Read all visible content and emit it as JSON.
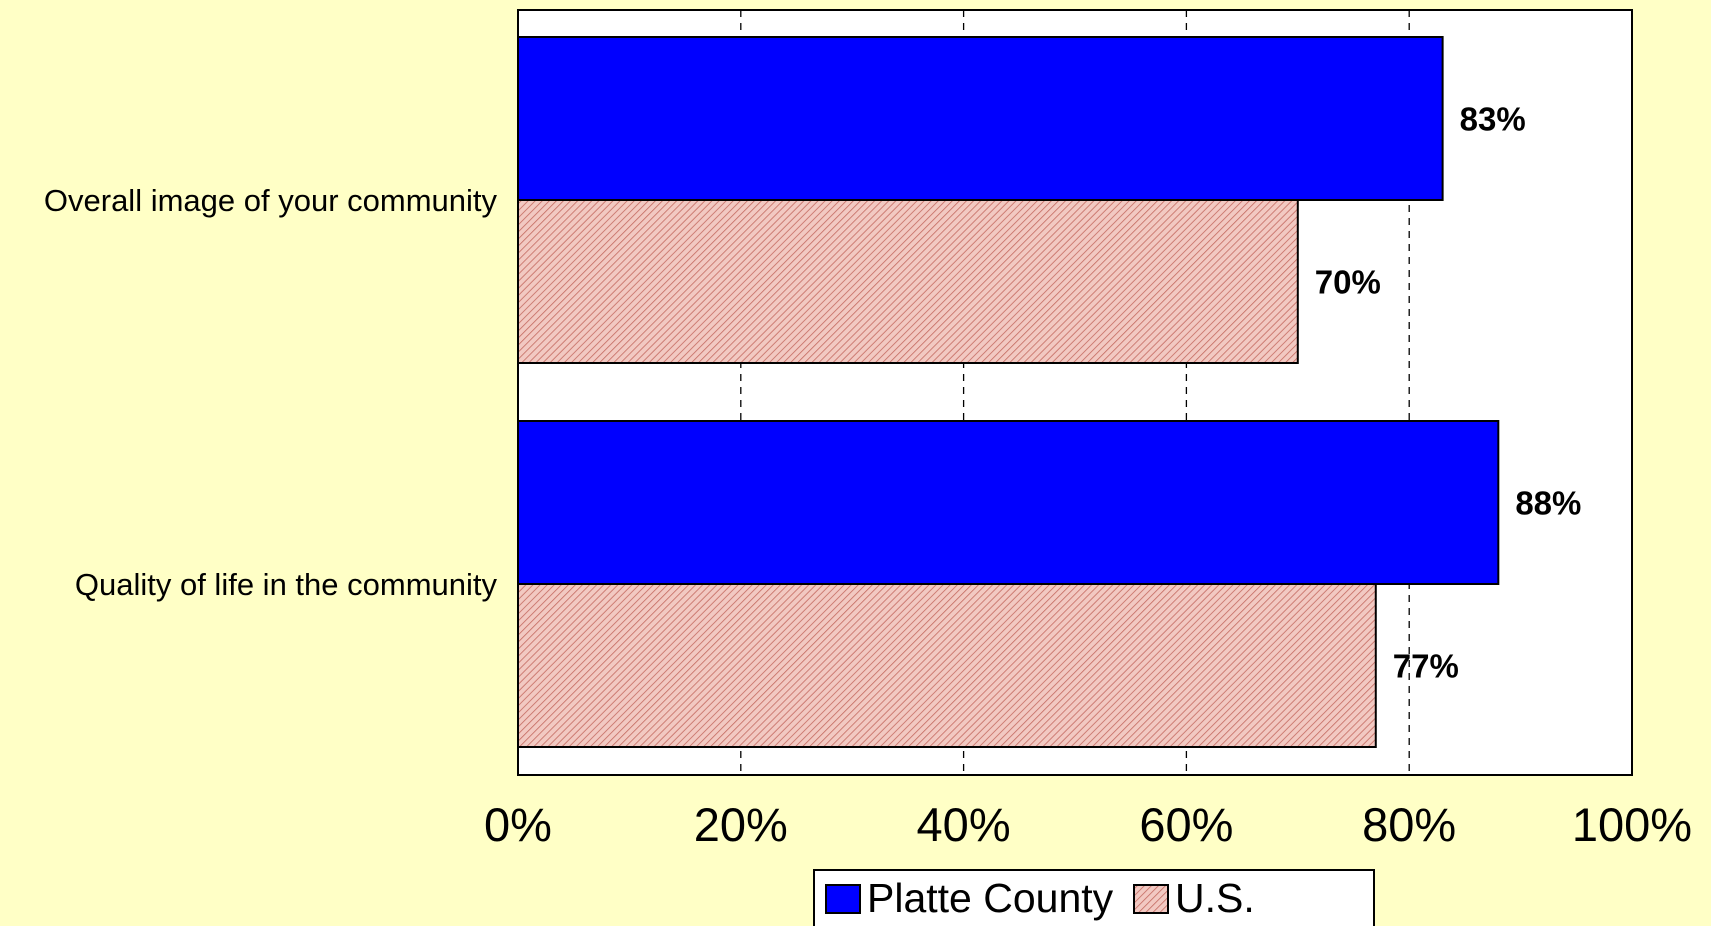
{
  "chart_data": {
    "type": "bar",
    "orientation": "horizontal",
    "categories": [
      "Overall image of your community",
      "Quality of life in the community"
    ],
    "series": [
      {
        "name": "Platte County",
        "values": [
          83,
          88
        ],
        "labels": [
          "83%",
          "88%"
        ],
        "color": "#0000FF",
        "pattern": "solid"
      },
      {
        "name": "U.S.",
        "values": [
          70,
          77
        ],
        "labels": [
          "70%",
          "77%"
        ],
        "color": "#F2C9C2",
        "pattern": "diagonal-hatch",
        "hatch_color": "#C46A60"
      }
    ],
    "xlim": [
      0,
      100
    ],
    "x_ticks": [
      0,
      20,
      40,
      60,
      80,
      100
    ],
    "x_tick_labels": [
      "0%",
      "20%",
      "40%",
      "60%",
      "80%",
      "100%"
    ],
    "grid": {
      "vertical": true,
      "style": "dashed"
    },
    "legend": {
      "position": "bottom"
    },
    "plot_background": "#FFFFFF",
    "page_background": "#FFFFC6"
  }
}
